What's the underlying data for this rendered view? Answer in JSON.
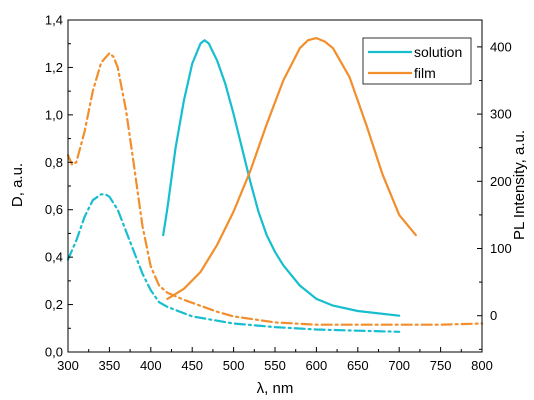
{
  "chart_data": {
    "type": "line",
    "xlabel": "λ, nm",
    "ylabel_left": "D, a.u.",
    "ylabel_right": "PL Intensity, a.u.",
    "xlim": [
      300,
      800
    ],
    "ylim_left": [
      0,
      1.4
    ],
    "ylim_right": [
      -54,
      440
    ],
    "x_ticks": [
      300,
      350,
      400,
      450,
      500,
      550,
      600,
      650,
      700,
      750,
      800
    ],
    "x_tick_labels": [
      "300",
      "350",
      "400",
      "450",
      "500",
      "550",
      "600",
      "650",
      "700",
      "750",
      "800"
    ],
    "y_left_ticks": [
      0,
      0.2,
      0.4,
      0.6,
      0.8,
      1.0,
      1.2,
      1.4
    ],
    "y_left_tick_labels": [
      "0,0",
      "0,2",
      "0,4",
      "0,6",
      "0,8",
      "1,0",
      "1,2",
      "1,4"
    ],
    "y_right_ticks": [
      0,
      100,
      200,
      300,
      400
    ],
    "y_right_tick_labels": [
      "0",
      "100",
      "200",
      "300",
      "400"
    ],
    "legend_position": "top-right",
    "legend": [
      {
        "label": "solution",
        "color": "#17BECF"
      },
      {
        "label": "film",
        "color": "#F28E2B"
      }
    ],
    "series": [
      {
        "name": "solution",
        "axis": "left",
        "style": "dashdot",
        "color": "#17BECF",
        "x": [
          300,
          310,
          320,
          330,
          340,
          345,
          350,
          360,
          370,
          380,
          390,
          400,
          410,
          420,
          450,
          500,
          550,
          600,
          650,
          700
        ],
        "y": [
          0.39,
          0.47,
          0.57,
          0.64,
          0.665,
          0.665,
          0.655,
          0.6,
          0.51,
          0.42,
          0.33,
          0.26,
          0.21,
          0.19,
          0.15,
          0.12,
          0.105,
          0.095,
          0.09,
          0.085
        ]
      },
      {
        "name": "film",
        "axis": "left",
        "style": "dashdot",
        "color": "#F28E2B",
        "x": [
          300,
          305,
          310,
          320,
          330,
          340,
          350,
          355,
          360,
          370,
          380,
          390,
          400,
          410,
          420,
          440,
          460,
          480,
          500,
          550,
          600,
          650,
          700,
          750,
          800
        ],
        "y": [
          0.83,
          0.79,
          0.8,
          0.93,
          1.1,
          1.22,
          1.26,
          1.245,
          1.2,
          1.02,
          0.78,
          0.53,
          0.36,
          0.28,
          0.25,
          0.22,
          0.195,
          0.17,
          0.15,
          0.125,
          0.115,
          0.115,
          0.115,
          0.115,
          0.12
        ]
      },
      {
        "name": "solution",
        "axis": "right",
        "style": "solid",
        "color": "#17BECF",
        "x": [
          415,
          420,
          430,
          440,
          450,
          460,
          465,
          470,
          480,
          490,
          500,
          510,
          520,
          530,
          540,
          550,
          560,
          580,
          600,
          620,
          650,
          700
        ],
        "y": [
          120,
          160,
          250,
          320,
          375,
          405,
          410,
          405,
          380,
          345,
          300,
          250,
          200,
          155,
          120,
          95,
          75,
          45,
          25,
          15,
          7,
          0
        ]
      },
      {
        "name": "film",
        "axis": "right",
        "style": "solid",
        "color": "#F28E2B",
        "x": [
          420,
          440,
          460,
          480,
          500,
          520,
          540,
          560,
          580,
          590,
          600,
          610,
          620,
          640,
          660,
          680,
          700,
          720
        ],
        "y": [
          25,
          40,
          65,
          105,
          155,
          215,
          285,
          350,
          398,
          410,
          413,
          408,
          398,
          355,
          285,
          210,
          150,
          120
        ]
      }
    ]
  }
}
